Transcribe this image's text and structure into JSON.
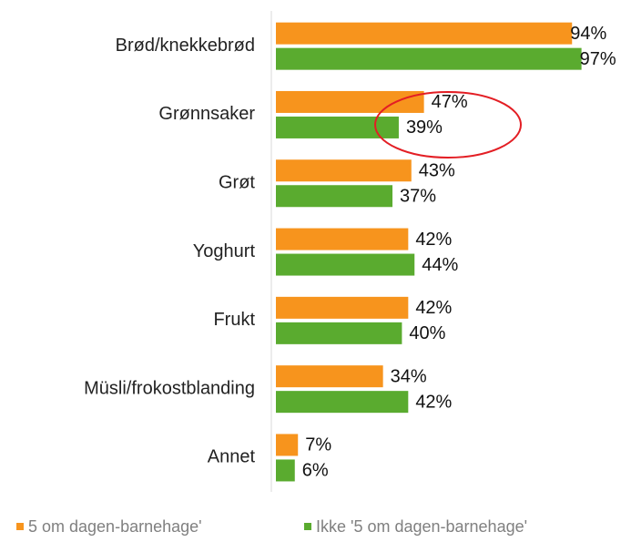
{
  "chart_data": {
    "type": "bar",
    "orientation": "horizontal",
    "categories": [
      "Brød/knekkebrød",
      "Grønnsaker",
      "Grøt",
      "Yoghurt",
      "Frukt",
      "Müsli/frokostblanding",
      "Annet"
    ],
    "series": [
      {
        "name": "5 om dagen-barnehage'",
        "color": "#f7941d",
        "values": [
          94,
          47,
          43,
          42,
          42,
          34,
          7
        ],
        "value_labels": [
          "94%",
          "47%",
          "43%",
          "42%",
          "42%",
          "34%",
          "7%"
        ]
      },
      {
        "name": "Ikke '5 om dagen-barnehage'",
        "color": "#5aab2f",
        "values": [
          97,
          39,
          37,
          44,
          40,
          42,
          6
        ],
        "value_labels": [
          "97%",
          "39%",
          "37%",
          "44%",
          "40%",
          "42%",
          "6%"
        ]
      }
    ],
    "xlim": [
      0,
      100
    ],
    "legend": "bottom"
  }
}
